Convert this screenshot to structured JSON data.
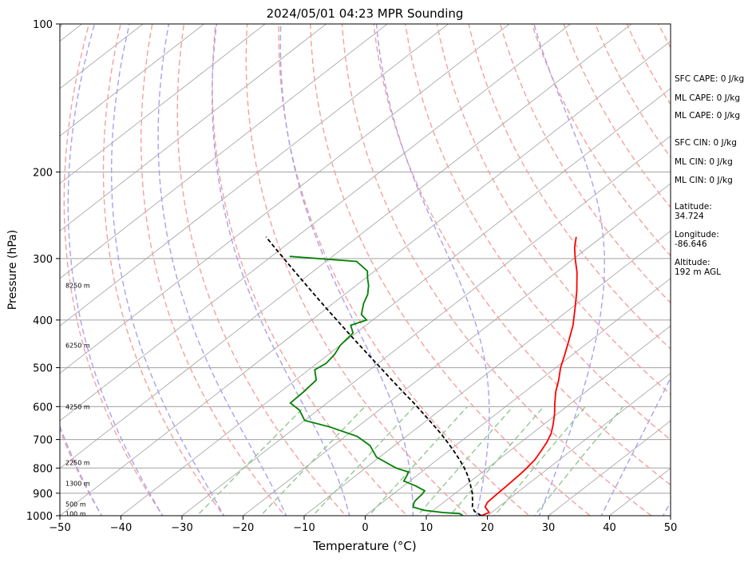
{
  "chart_data": {
    "type": "line",
    "title": "2024/05/01 04:23 MPR Sounding",
    "xlabel": "Temperature (°C)",
    "ylabel": "Pressure (hPa)",
    "xlim": [
      -50,
      50
    ],
    "ylim": [
      1000,
      100
    ],
    "y_scale": "log",
    "skew_degrees_per_decade_ln": 45,
    "xticks": [
      "−50",
      "−40",
      "−30",
      "−20",
      "−10",
      "0",
      "10",
      "20",
      "30",
      "40",
      "50"
    ],
    "yticks": [
      "100",
      "200",
      "300",
      "400",
      "500",
      "600",
      "700",
      "800",
      "900",
      "1000"
    ],
    "grid": "on",
    "series": [
      {
        "kind": "temperature",
        "color": "#ff0000",
        "points": [
          [
            1000,
            19
          ],
          [
            985,
            19.6
          ],
          [
            975,
            18.9
          ],
          [
            960,
            17.8
          ],
          [
            940,
            17.2
          ],
          [
            900,
            17
          ],
          [
            870,
            16.9
          ],
          [
            840,
            16.7
          ],
          [
            820,
            16.6
          ],
          [
            800,
            16.4
          ],
          [
            770,
            16
          ],
          [
            740,
            15.2
          ],
          [
            710,
            14.3
          ],
          [
            680,
            13.1
          ],
          [
            650,
            11.4
          ],
          [
            620,
            9.5
          ],
          [
            590,
            7.3
          ],
          [
            560,
            5.1
          ],
          [
            530,
            3.1
          ],
          [
            500,
            0.8
          ],
          [
            470,
            -1.3
          ],
          [
            440,
            -3.6
          ],
          [
            410,
            -6.1
          ],
          [
            380,
            -9.2
          ],
          [
            350,
            -12.6
          ],
          [
            320,
            -16.6
          ],
          [
            300,
            -19.8
          ],
          [
            285,
            -22.2
          ],
          [
            271,
            -24.2
          ]
        ]
      },
      {
        "kind": "dewpoint",
        "color": "#008000",
        "points": [
          [
            1000,
            16
          ],
          [
            990,
            15
          ],
          [
            985,
            12
          ],
          [
            975,
            8.5
          ],
          [
            960,
            6
          ],
          [
            940,
            5.2
          ],
          [
            930,
            5
          ],
          [
            905,
            4.8
          ],
          [
            890,
            4.5
          ],
          [
            870,
            2
          ],
          [
            850,
            -1
          ],
          [
            830,
            -1.6
          ],
          [
            815,
            -2.1
          ],
          [
            800,
            -5
          ],
          [
            760,
            -10.5
          ],
          [
            720,
            -14
          ],
          [
            690,
            -18
          ],
          [
            660,
            -24.5
          ],
          [
            640,
            -30
          ],
          [
            610,
            -33
          ],
          [
            590,
            -36
          ],
          [
            560,
            -36.2
          ],
          [
            530,
            -36.6
          ],
          [
            505,
            -39
          ],
          [
            490,
            -38.5
          ],
          [
            470,
            -39
          ],
          [
            450,
            -40
          ],
          [
            425,
            -40.5
          ],
          [
            410,
            -42.5
          ],
          [
            400,
            -41
          ],
          [
            390,
            -43
          ],
          [
            370,
            -45
          ],
          [
            355,
            -46.2
          ],
          [
            340,
            -48
          ],
          [
            330,
            -49.5
          ],
          [
            318,
            -51.2
          ],
          [
            304,
            -55
          ],
          [
            297,
            -67
          ]
        ]
      },
      {
        "kind": "parcel",
        "color": "#000000",
        "points": [
          [
            1000,
            19
          ],
          [
            980,
            17
          ],
          [
            960,
            15.7
          ],
          [
            940,
            14.8
          ],
          [
            920,
            13.8
          ],
          [
            900,
            12.8
          ],
          [
            880,
            11.6
          ],
          [
            860,
            10.4
          ],
          [
            840,
            9.1
          ],
          [
            820,
            7.7
          ],
          [
            800,
            6.2
          ],
          [
            770,
            3.7
          ],
          [
            740,
            1
          ],
          [
            710,
            -1.9
          ],
          [
            680,
            -5
          ],
          [
            650,
            -8.4
          ],
          [
            620,
            -12
          ],
          [
            590,
            -15.8
          ],
          [
            560,
            -19.9
          ],
          [
            530,
            -24.2
          ],
          [
            500,
            -28.7
          ],
          [
            470,
            -33.5
          ],
          [
            440,
            -38.6
          ],
          [
            410,
            -44
          ],
          [
            380,
            -49.8
          ],
          [
            350,
            -56
          ],
          [
            320,
            -62.7
          ],
          [
            300,
            -67.5
          ],
          [
            285,
            -71.3
          ],
          [
            271,
            -75
          ]
        ]
      }
    ],
    "height_labels": [
      {
        "p": 991,
        "text": "100 m"
      },
      {
        "p": 948,
        "text": "500 m"
      },
      {
        "p": 860,
        "text": "1300 m"
      },
      {
        "p": 780,
        "text": "2250 m"
      },
      {
        "p": 600,
        "text": "4250 m"
      },
      {
        "p": 450,
        "text": "6250 m"
      },
      {
        "p": 340,
        "text": "8250 m"
      }
    ],
    "dry_adiabats_theta_K": [
      190,
      200,
      210,
      220,
      230,
      240,
      250,
      260,
      270,
      280,
      290,
      300,
      310,
      320,
      330,
      340,
      350,
      360,
      370,
      380,
      390,
      400,
      410,
      420,
      430,
      440,
      450,
      460,
      470,
      480
    ],
    "moist_adiabats_T_C": [
      -60,
      -50,
      -40,
      -30,
      -20,
      -10,
      0,
      10,
      20,
      30,
      40,
      50
    ],
    "mixing_ratio_lines_gkg": [
      0.4,
      1,
      2,
      4,
      7,
      10,
      16,
      24
    ],
    "side_text": [
      "SFC CAPE: 0 J/kg",
      "ML CAPE: 0 J/kg",
      "ML CAPE: 0 J/kg",
      "SFC CIN: 0 J/kg",
      "ML CIN: 0 J/kg",
      "ML CIN: 0 J/kg"
    ],
    "location": {
      "latitude_label": "Latitude:",
      "latitude": "34.724",
      "longitude_label": "Longitude:",
      "longitude": "-86.646",
      "altitude_label": "Altitude:",
      "altitude": "192 m AGL"
    },
    "colors": {
      "temperature": "#ff0000",
      "dewpoint": "#008000",
      "parcel": "#000000",
      "dry_adiabat": "#f5a0a0",
      "moist_adiabat": "#a9a0f0",
      "mixing_ratio": "#92c892",
      "isotherm": "#a0a0a0",
      "isobar": "#a0a0a0"
    }
  }
}
